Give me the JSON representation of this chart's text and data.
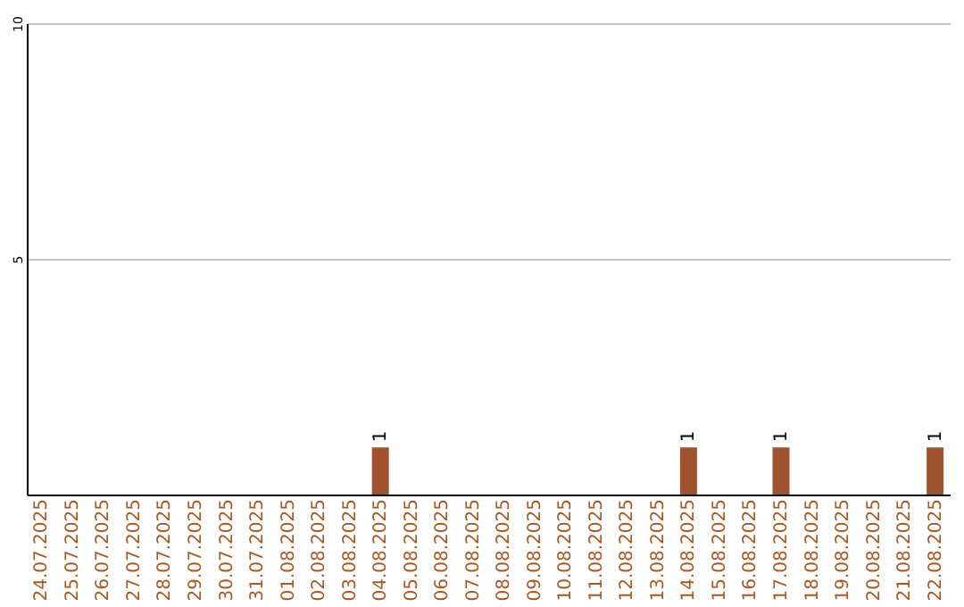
{
  "chart_data": {
    "type": "bar",
    "categories": [
      "24.07.2025",
      "25.07.2025",
      "26.07.2025",
      "27.07.2025",
      "28.07.2025",
      "29.07.2025",
      "30.07.2025",
      "31.07.2025",
      "01.08.2025",
      "02.08.2025",
      "03.08.2025",
      "04.08.2025",
      "05.08.2025",
      "06.08.2025",
      "07.08.2025",
      "08.08.2025",
      "09.08.2025",
      "10.08.2025",
      "11.08.2025",
      "12.08.2025",
      "13.08.2025",
      "14.08.2025",
      "15.08.2025",
      "16.08.2025",
      "17.08.2025",
      "18.08.2025",
      "19.08.2025",
      "20.08.2025",
      "21.08.2025",
      "22.08.2025"
    ],
    "values": [
      0,
      0,
      0,
      0,
      0,
      0,
      0,
      0,
      0,
      0,
      0,
      1,
      0,
      0,
      0,
      0,
      0,
      0,
      0,
      0,
      0,
      1,
      0,
      0,
      1,
      0,
      0,
      0,
      0,
      1
    ],
    "value_labels": [
      null,
      null,
      null,
      null,
      null,
      null,
      null,
      null,
      null,
      null,
      null,
      "1",
      null,
      null,
      null,
      null,
      null,
      null,
      null,
      null,
      null,
      "1",
      null,
      null,
      "1",
      null,
      null,
      null,
      null,
      "1"
    ],
    "color": "#a0522d",
    "ylim": [
      0,
      10
    ],
    "yticks": [
      5,
      10
    ],
    "grid": "y"
  }
}
